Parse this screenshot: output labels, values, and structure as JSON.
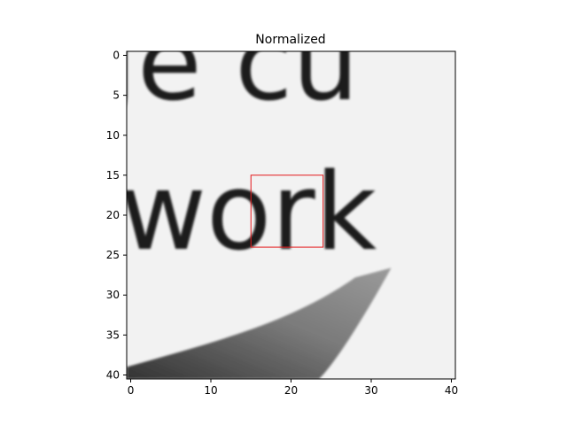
{
  "chart_data": {
    "type": "heatmap",
    "title": "Normalized",
    "xlabel": "",
    "ylabel": "",
    "colormap": "gray",
    "image_size": [
      41,
      41
    ],
    "xlim": [
      -0.5,
      40.5
    ],
    "ylim": [
      40.5,
      -0.5
    ],
    "x_ticks": [
      0,
      10,
      20,
      30,
      40
    ],
    "y_ticks": [
      0,
      5,
      10,
      15,
      20,
      25,
      30,
      35,
      40
    ],
    "image_content": {
      "text_fragments": [
        "Je cu",
        "work"
      ],
      "background_shade": "#f2f2f2",
      "ink_shade": "#1c1c1c"
    },
    "annotations": [
      {
        "type": "rectangle",
        "x0": 15,
        "y0": 15,
        "x1": 24,
        "y1": 24,
        "color": "#e41a1c"
      }
    ]
  }
}
